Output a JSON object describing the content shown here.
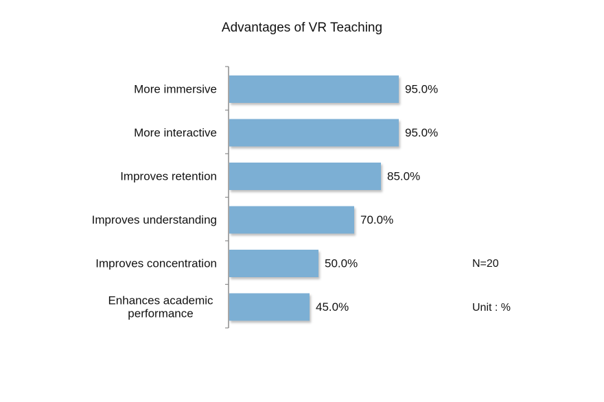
{
  "chart_data": {
    "type": "bar",
    "orientation": "horizontal",
    "title": "Advantages of VR Teaching",
    "categories": [
      "More immersive",
      "More interactive",
      "Improves retention",
      "Improves understanding",
      "Improves concentration",
      "Enhances academic performance"
    ],
    "category_label_lines": [
      [
        "More immersive"
      ],
      [
        "More interactive"
      ],
      [
        "Improves retention"
      ],
      [
        "Improves understanding"
      ],
      [
        "Improves concentration"
      ],
      [
        "Enhances academic",
        "performance"
      ]
    ],
    "values": [
      95.0,
      95.0,
      85.0,
      70.0,
      50.0,
      45.0
    ],
    "value_labels": [
      "95.0%",
      "95.0%",
      "85.0%",
      "70.0%",
      "50.0%",
      "45.0%"
    ],
    "xlim": [
      0,
      100
    ],
    "grid": false,
    "legend": "none",
    "bar_color": "#7BAFD4"
  },
  "notes": {
    "sample": "N=20",
    "unit": "Unit : %"
  }
}
